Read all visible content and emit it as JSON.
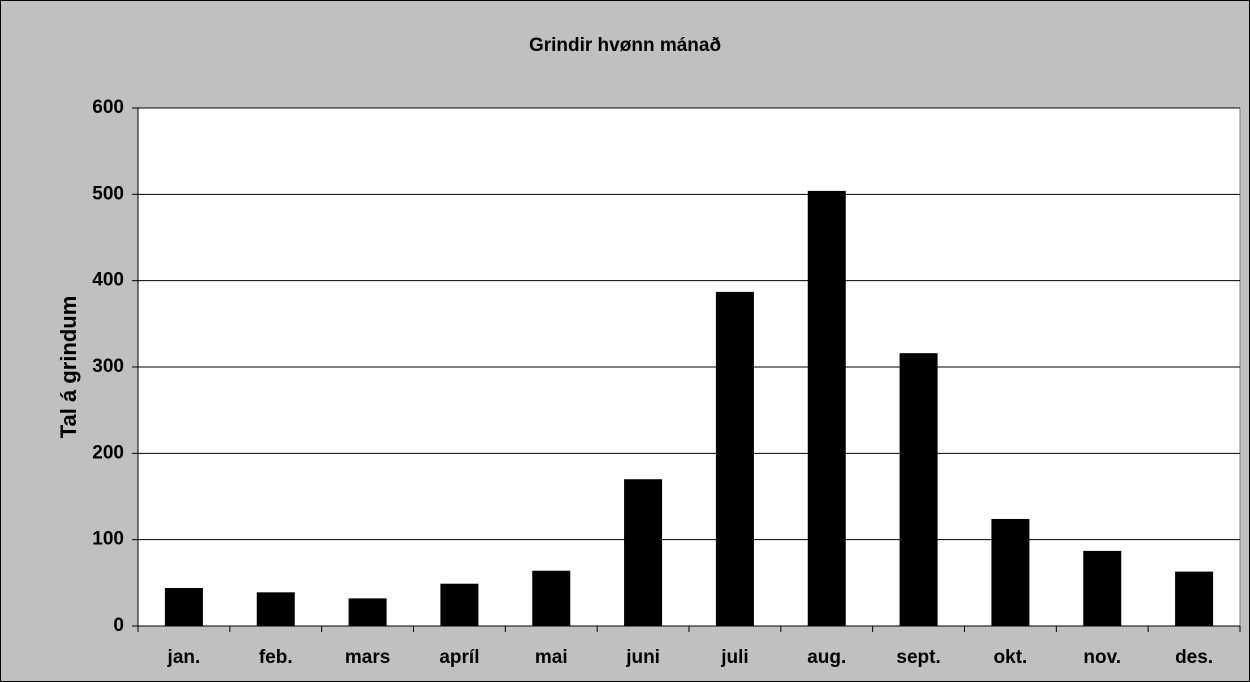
{
  "chart_data": {
    "type": "bar",
    "title": "Grindir hvønn mánað",
    "y_label": "Tal á grindum",
    "categories": [
      "jan.",
      "feb.",
      "mars",
      "apríl",
      "mai",
      "juni",
      "juli",
      "aug.",
      "sept.",
      "okt.",
      "nov.",
      "des."
    ],
    "values": [
      44,
      39,
      32,
      49,
      64,
      170,
      387,
      504,
      316,
      124,
      87,
      63
    ],
    "color": "#000000",
    "ylim": [
      0,
      600
    ],
    "yticks": [
      0,
      100,
      200,
      300,
      400,
      500,
      600
    ],
    "grid": true
  }
}
